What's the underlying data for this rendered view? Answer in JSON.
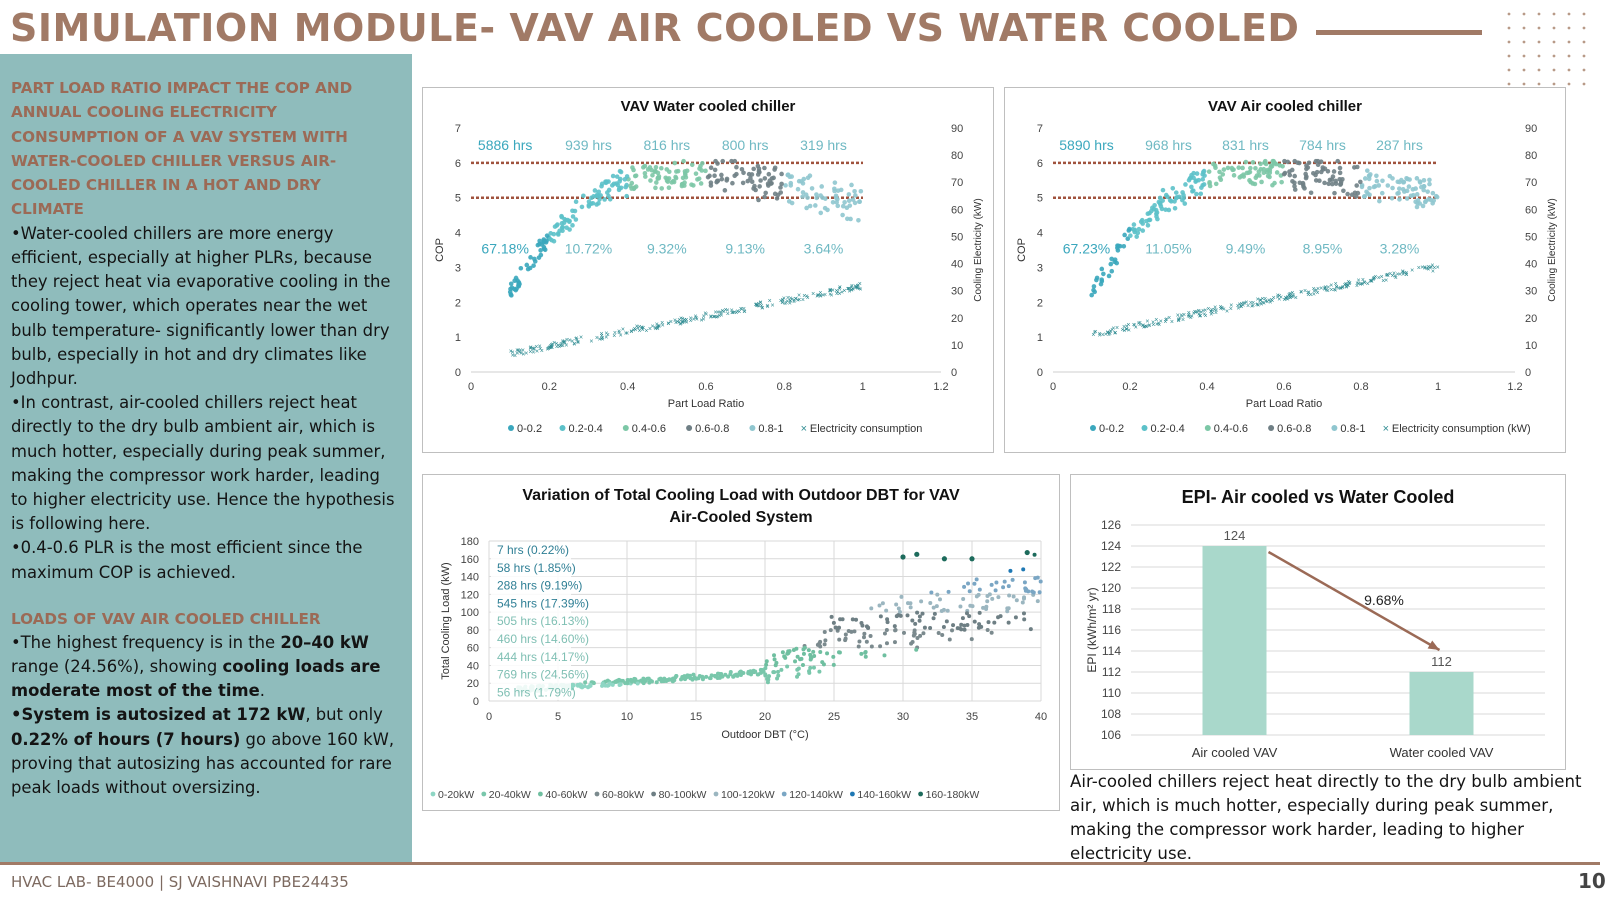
{
  "title": "SIMULATION MODULE- VAV AIR COOLED VS WATER COOLED",
  "left_panel": {
    "heading": "PART LOAD RATIO IMPACT THE COP AND ANNUAL COOLING ELECTRICITY CONSUMPTION OF A VAV SYSTEM WITH WATER-COOLED CHILLER VERSUS AIR-COOLED CHILLER IN A HOT AND DRY CLIMATE",
    "bullet1": "•Water-cooled chillers are more energy efficient, especially at higher PLRs, because they reject heat via evaporative cooling in the cooling tower, which operates near the wet bulb temperature- significantly lower than dry bulb, especially in hot and dry climates like Jodhpur.",
    "bullet2": "•In contrast, air-cooled chillers reject heat directly to the dry bulb ambient air, which is much hotter, especially during peak summer, making the compressor work harder, leading to higher electricity use. Hence the hypothesis is following here.",
    "bullet3": "•0.4-0.6 PLR is the most efficient since the maximum COP is achieved.",
    "heading2": "LOADS OF VAV AIR COOLED CHILLER",
    "p1_a": "•The highest frequency is in the ",
    "p1_b": "20–40 kW",
    "p1_c": " range (24.56%), showing ",
    "p1_d": "cooling loads are moderate most of the time",
    "p1_e": ".",
    "p2_a": "•System is autosized at 172 kW",
    "p2_b": ", but only ",
    "p2_c": "0.22% of hours (7 hours)",
    "p2_d": " go above 160 kW, proving that autosizing has accounted for rare peak loads without oversizing."
  },
  "charts": {
    "water": {
      "chart_data": {
        "type": "scatter",
        "title": "VAV Water cooled chiller",
        "xlabel": "Part Load Ratio",
        "ylabel": "COP",
        "y2label": "Cooling Electricity (kW)",
        "xlim": [
          0,
          1.2
        ],
        "ylim": [
          0,
          7
        ],
        "y2lim": [
          0,
          90
        ],
        "x_ticks": [
          "0",
          "0.2",
          "0.4",
          "0.6",
          "0.8",
          "1",
          "1.2"
        ],
        "y_ticks": [
          "0",
          "1",
          "2",
          "3",
          "4",
          "5",
          "6",
          "7"
        ],
        "y2_ticks": [
          "0",
          "10",
          "20",
          "30",
          "40",
          "50",
          "60",
          "70",
          "80",
          "90"
        ],
        "bins": [
          "0-0.2",
          "0.2-0.4",
          "0.4-0.6",
          "0.6-0.8",
          "0.8-1"
        ],
        "hours": [
          "5886 hrs",
          "939 hrs",
          "816 hrs",
          "800 hrs",
          "319 hrs"
        ],
        "percents": [
          "67.18%",
          "10.72%",
          "9.32%",
          "9.13%",
          "3.64%"
        ],
        "reference_lines_cop": [
          6,
          5
        ],
        "cop_curve": {
          "x": [
            0.1,
            0.2,
            0.3,
            0.4,
            0.5,
            0.6,
            0.7,
            0.8,
            0.9,
            1.0
          ],
          "y": [
            2.3,
            3.9,
            4.9,
            5.4,
            5.6,
            5.6,
            5.5,
            5.3,
            5.0,
            4.7
          ]
        },
        "electricity_line": {
          "x": [
            0.1,
            1.0
          ],
          "y": [
            7,
            32
          ]
        },
        "legend": [
          "0-0.2",
          "0.2-0.4",
          "0.4-0.6",
          "0.6-0.8",
          "0.8-1",
          "Electricity consumption"
        ]
      }
    },
    "air": {
      "chart_data": {
        "type": "scatter",
        "title": "VAV Air cooled chiller",
        "xlabel": "Part Load Ratio",
        "ylabel": "COP",
        "y2label": "Cooling Electricity (kW)",
        "xlim": [
          0,
          1.2
        ],
        "ylim": [
          0,
          7
        ],
        "y2lim": [
          0,
          90
        ],
        "x_ticks": [
          "0",
          "0.2",
          "0.4",
          "0.6",
          "0.8",
          "1",
          "1.2"
        ],
        "y_ticks": [
          "0",
          "1",
          "2",
          "3",
          "4",
          "5",
          "6",
          "7"
        ],
        "y2_ticks": [
          "0",
          "10",
          "20",
          "30",
          "40",
          "50",
          "60",
          "70",
          "80",
          "90"
        ],
        "bins": [
          "0-0.2",
          "0.2-0.4",
          "0.4-0.6",
          "0.6-0.8",
          "0.8-1"
        ],
        "hours": [
          "5890 hrs",
          "968 hrs",
          "831 hrs",
          "784 hrs",
          "287 hrs"
        ],
        "percents": [
          "67.23%",
          "11.05%",
          "9.49%",
          "8.95%",
          "3.28%"
        ],
        "reference_lines_cop": [
          6,
          5
        ],
        "cop_curve": {
          "x": [
            0.1,
            0.2,
            0.3,
            0.4,
            0.5,
            0.6,
            0.7,
            0.8,
            0.9,
            1.0
          ],
          "y": [
            2.3,
            3.9,
            4.9,
            5.5,
            5.7,
            5.7,
            5.6,
            5.4,
            5.2,
            5.0
          ]
        },
        "electricity_line": {
          "x": [
            0.1,
            1.0
          ],
          "y": [
            14,
            39
          ]
        },
        "legend": [
          "0-0.2",
          "0.2-0.4",
          "0.4-0.6",
          "0.6-0.8",
          "0.8-1",
          "Electricity consumption (kW)"
        ]
      }
    },
    "load": {
      "chart_data": {
        "type": "scatter",
        "title": "Variation of Total Cooling Load with Outdoor DBT for VAV Air-Cooled System",
        "xlabel": "Outdoor DBT (°C)",
        "ylabel": "Total Cooling Load (kW)",
        "xlim": [
          0,
          40
        ],
        "ylim": [
          0,
          180
        ],
        "x_ticks": [
          "0",
          "5",
          "10",
          "15",
          "20",
          "25",
          "30",
          "35",
          "40"
        ],
        "y_ticks": [
          "0",
          "20",
          "40",
          "60",
          "80",
          "100",
          "120",
          "140",
          "160",
          "180"
        ],
        "bin_labels": [
          "7 hrs (0.22%)",
          "58 hrs (1.85%)",
          "288 hrs (9.19%)",
          "545 hrs (17.39%)",
          "505 hrs (16.13%)",
          "460 hrs (14.60%)",
          "444 hrs (14.17%)",
          "769 hrs (24.56%)",
          "56 hrs (1.79%)"
        ],
        "legend": [
          "0-20kW",
          "20-40kW",
          "40-60kW",
          "60-80kW",
          "80-100kW",
          "100-120kW",
          "120-140kW",
          "140-160kW",
          "160-180kW"
        ]
      }
    },
    "epi": {
      "chart_data": {
        "type": "bar",
        "title": "EPI- Air cooled vs Water Cooled",
        "ylabel": "EPI (kWh/m² yr)",
        "categories": [
          "Air cooled VAV",
          "Water cooled VAV"
        ],
        "values": [
          124,
          112
        ],
        "value_labels": [
          "124",
          "112"
        ],
        "ylim": [
          106,
          126
        ],
        "y_ticks": [
          "106",
          "108",
          "110",
          "112",
          "114",
          "116",
          "118",
          "120",
          "122",
          "124",
          "126"
        ],
        "annotation": "9.68%"
      }
    }
  },
  "caption": "Air-cooled chillers reject heat directly to the dry bulb ambient air, which is much hotter, especially during peak summer, making the compressor work harder, leading to higher electricity use.",
  "footer": "HVAC LAB- BE4000 | SJ VAISHNAVI PBE24435",
  "page_number": "10",
  "colors": {
    "title": "#a17a66",
    "panel": "#8fbcbc",
    "bin1": "#3aa7bd",
    "bin2": "#5cc1c9",
    "bin3": "#7cc7a6",
    "bin4": "#6f7f85",
    "bin5": "#8fc6cf",
    "elec": "#2f8c92",
    "bar": "#a9d8cb",
    "arrow": "#9b6a56"
  }
}
